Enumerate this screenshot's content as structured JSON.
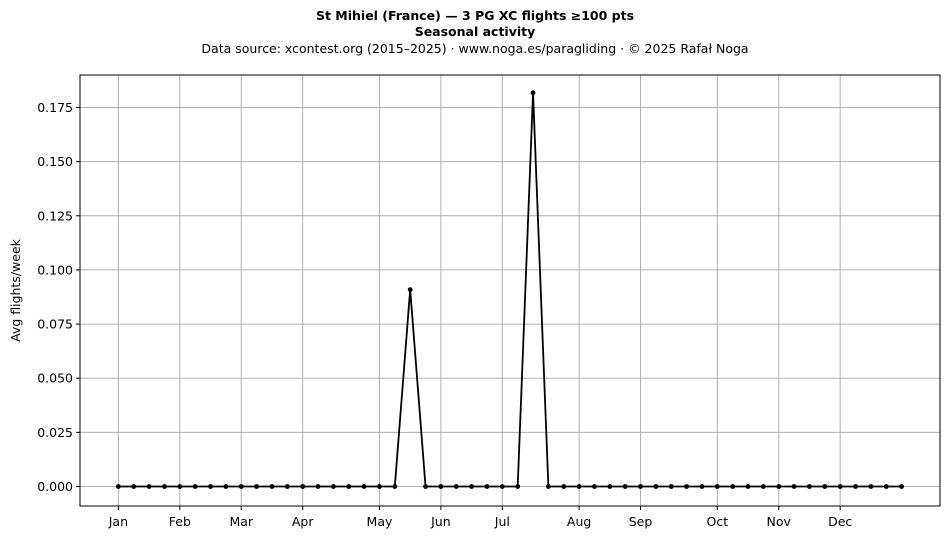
{
  "chart_data": {
    "type": "line",
    "title": "St Mihiel (France)  —  3 PG XC flights ≥100 pts",
    "subtitle": "Seasonal activity",
    "source_line": "Data source: xcontest.org (2015–2025)  ·  www.noga.es/paragliding  ·  © 2025 Rafał Noga",
    "ylabel": "Avg flights/week",
    "xlabel": "",
    "ylim": [
      -0.009,
      0.19
    ],
    "xlim": [
      -2.5,
      53.5
    ],
    "grid": true,
    "x_ticks": [
      {
        "label": "Jan",
        "week": 0
      },
      {
        "label": "Feb",
        "week": 4
      },
      {
        "label": "Mar",
        "week": 8
      },
      {
        "label": "Apr",
        "week": 12
      },
      {
        "label": "May",
        "week": 17
      },
      {
        "label": "Jun",
        "week": 21
      },
      {
        "label": "Jul",
        "week": 25
      },
      {
        "label": "Aug",
        "week": 30
      },
      {
        "label": "Sep",
        "week": 34
      },
      {
        "label": "Oct",
        "week": 39
      },
      {
        "label": "Nov",
        "week": 43
      },
      {
        "label": "Dec",
        "week": 47
      }
    ],
    "y_ticks": [
      "0.000",
      "0.025",
      "0.050",
      "0.075",
      "0.100",
      "0.125",
      "0.150",
      "0.175"
    ],
    "y_tick_values": [
      0,
      0.025,
      0.05,
      0.075,
      0.1,
      0.125,
      0.15,
      0.175
    ],
    "series": [
      {
        "color": "#000000",
        "x": [
          0,
          1,
          2,
          3,
          4,
          5,
          6,
          7,
          8,
          9,
          10,
          11,
          12,
          13,
          14,
          15,
          16,
          17,
          18,
          19,
          20,
          21,
          22,
          23,
          24,
          25,
          26,
          27,
          28,
          29,
          30,
          31,
          32,
          33,
          34,
          35,
          36,
          37,
          38,
          39,
          40,
          41,
          42,
          43,
          44,
          45,
          46,
          47,
          48,
          49,
          50,
          51
        ],
        "values": [
          0,
          0,
          0,
          0,
          0,
          0,
          0,
          0,
          0,
          0,
          0,
          0,
          0,
          0,
          0,
          0,
          0,
          0,
          0,
          0.0909,
          0,
          0,
          0,
          0,
          0,
          0,
          0,
          0.1818,
          0,
          0,
          0,
          0,
          0,
          0,
          0,
          0,
          0,
          0,
          0,
          0,
          0,
          0,
          0,
          0,
          0,
          0,
          0,
          0,
          0,
          0,
          0,
          0
        ]
      }
    ]
  }
}
